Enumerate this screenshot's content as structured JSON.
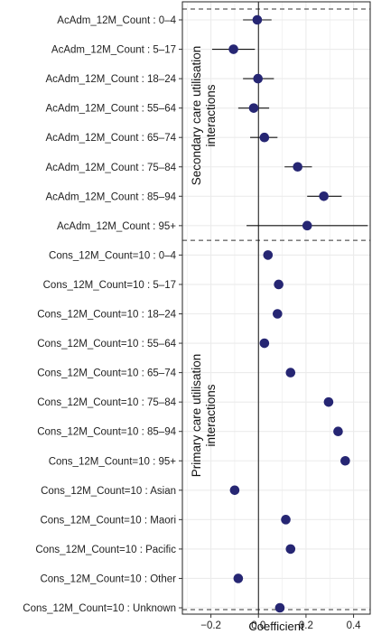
{
  "chart_data": {
    "type": "scatter",
    "subtype": "coefficient-plot-with-error-bars",
    "xlabel": "Coefficient",
    "xlim": [
      -0.32,
      0.47
    ],
    "xticks": [
      -0.2,
      0.0,
      0.2,
      0.4
    ],
    "xtick_labels": [
      "−0.2",
      "0.0",
      "0.2",
      "0.4"
    ],
    "reference_line_x": 0,
    "grid": true,
    "group_labels": [
      {
        "line1": "Secondary care utilisation",
        "line2": "interactions"
      },
      {
        "line1": "Primary care utilisation",
        "line2": "interactions"
      }
    ],
    "rows": [
      {
        "label": "AcAdm_12M_Count : 0–4",
        "value": -0.005,
        "lo": -0.065,
        "hi": 0.055
      },
      {
        "label": "AcAdm_12M_Count : 5–17",
        "value": -0.105,
        "lo": -0.195,
        "hi": -0.015
      },
      {
        "label": "AcAdm_12M_Count : 18–24",
        "value": -0.002,
        "lo": -0.065,
        "hi": 0.065
      },
      {
        "label": "AcAdm_12M_Count : 55–64",
        "value": -0.02,
        "lo": -0.085,
        "hi": 0.045
      },
      {
        "label": "AcAdm_12M_Count : 65–74",
        "value": 0.025,
        "lo": -0.035,
        "hi": 0.08
      },
      {
        "label": "AcAdm_12M_Count : 75–84",
        "value": 0.165,
        "lo": 0.11,
        "hi": 0.225
      },
      {
        "label": "AcAdm_12M_Count : 85–94",
        "value": 0.275,
        "lo": 0.205,
        "hi": 0.35
      },
      {
        "label": "AcAdm_12M_Count : 95+",
        "value": 0.205,
        "lo": -0.05,
        "hi": 0.46
      },
      {
        "label": "Cons_12M_Count=10 : 0–4",
        "value": 0.04,
        "lo": null,
        "hi": null
      },
      {
        "label": "Cons_12M_Count=10 : 5–17",
        "value": 0.085,
        "lo": null,
        "hi": null
      },
      {
        "label": "Cons_12M_Count=10 : 18–24",
        "value": 0.08,
        "lo": null,
        "hi": null
      },
      {
        "label": "Cons_12M_Count=10 : 55–64",
        "value": 0.025,
        "lo": null,
        "hi": null
      },
      {
        "label": "Cons_12M_Count=10 : 65–74",
        "value": 0.135,
        "lo": null,
        "hi": null
      },
      {
        "label": "Cons_12M_Count=10 : 75–84",
        "value": 0.295,
        "lo": null,
        "hi": null
      },
      {
        "label": "Cons_12M_Count=10 : 85–94",
        "value": 0.335,
        "lo": null,
        "hi": null
      },
      {
        "label": "Cons_12M_Count=10 : 95+",
        "value": 0.365,
        "lo": null,
        "hi": null
      },
      {
        "label": "Cons_12M_Count=10 : Asian",
        "value": -0.1,
        "lo": null,
        "hi": null
      },
      {
        "label": "Cons_12M_Count=10 : Maori",
        "value": 0.115,
        "lo": null,
        "hi": null
      },
      {
        "label": "Cons_12M_Count=10 : Pacific",
        "value": 0.135,
        "lo": null,
        "hi": null
      },
      {
        "label": "Cons_12M_Count=10 : Other",
        "value": -0.085,
        "lo": null,
        "hi": null
      },
      {
        "label": "Cons_12M_Count=10 : Unknown",
        "value": 0.09,
        "lo": null,
        "hi": null
      }
    ],
    "colors": {
      "point": "#262673",
      "errorbar": "#111111",
      "grid": "#ebebeb",
      "frame": "#222222"
    }
  }
}
